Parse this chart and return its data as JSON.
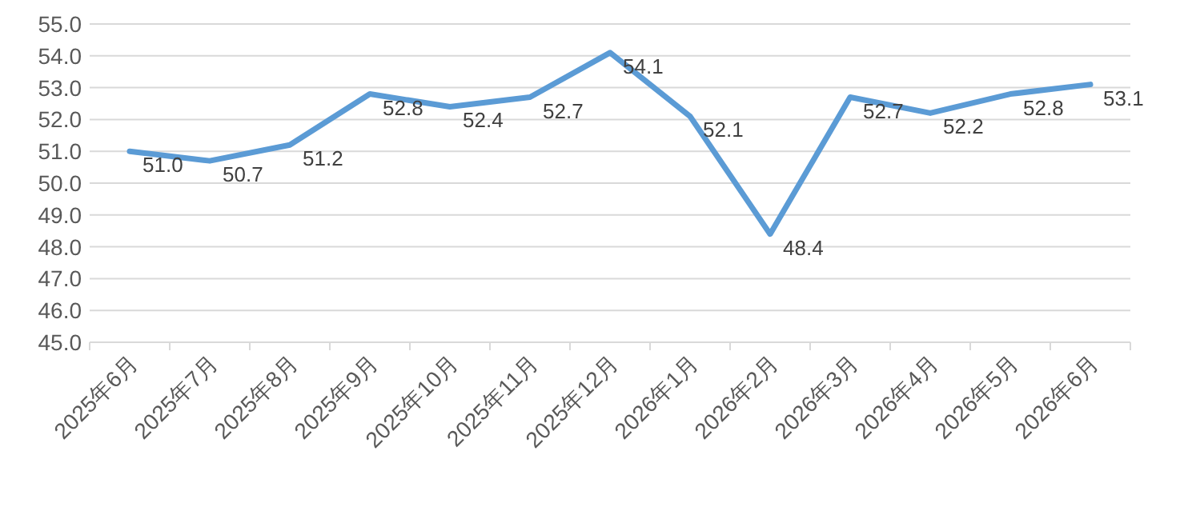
{
  "chart_data": {
    "type": "line",
    "categories": [
      "2025年6月",
      "2025年7月",
      "2025年8月",
      "2025年9月",
      "2025年10月",
      "2025年11月",
      "2025年12月",
      "2026年1月",
      "2026年2月",
      "2026年3月",
      "2026年4月",
      "2026年5月",
      "2026年6月"
    ],
    "series": [
      {
        "color": "#5b9bd5",
        "values": [
          51.0,
          50.7,
          51.2,
          52.8,
          52.4,
          52.7,
          54.1,
          52.1,
          48.4,
          52.7,
          52.2,
          52.8,
          53.1
        ],
        "value_labels": [
          "51.0",
          "50.7",
          "51.2",
          "52.8",
          "52.4",
          "52.7",
          "54.1",
          "52.1",
          "48.4",
          "52.7",
          "52.2",
          "52.8",
          "53.1"
        ]
      }
    ],
    "ylim": [
      45,
      55
    ],
    "yticks": [
      {
        "value": 45,
        "label": "45.0"
      },
      {
        "value": 46,
        "label": "46.0"
      },
      {
        "value": 47,
        "label": "47.0"
      },
      {
        "value": 48,
        "label": "48.0"
      },
      {
        "value": 49,
        "label": "49.0"
      },
      {
        "value": 50,
        "label": "50.0"
      },
      {
        "value": 51,
        "label": "51.0"
      },
      {
        "value": 52,
        "label": "52.0"
      },
      {
        "value": 53,
        "label": "53.0"
      },
      {
        "value": 54,
        "label": "54.0"
      },
      {
        "value": 55,
        "label": "55.0"
      }
    ],
    "grid": "y",
    "marker": "none",
    "line_style": "solid"
  }
}
